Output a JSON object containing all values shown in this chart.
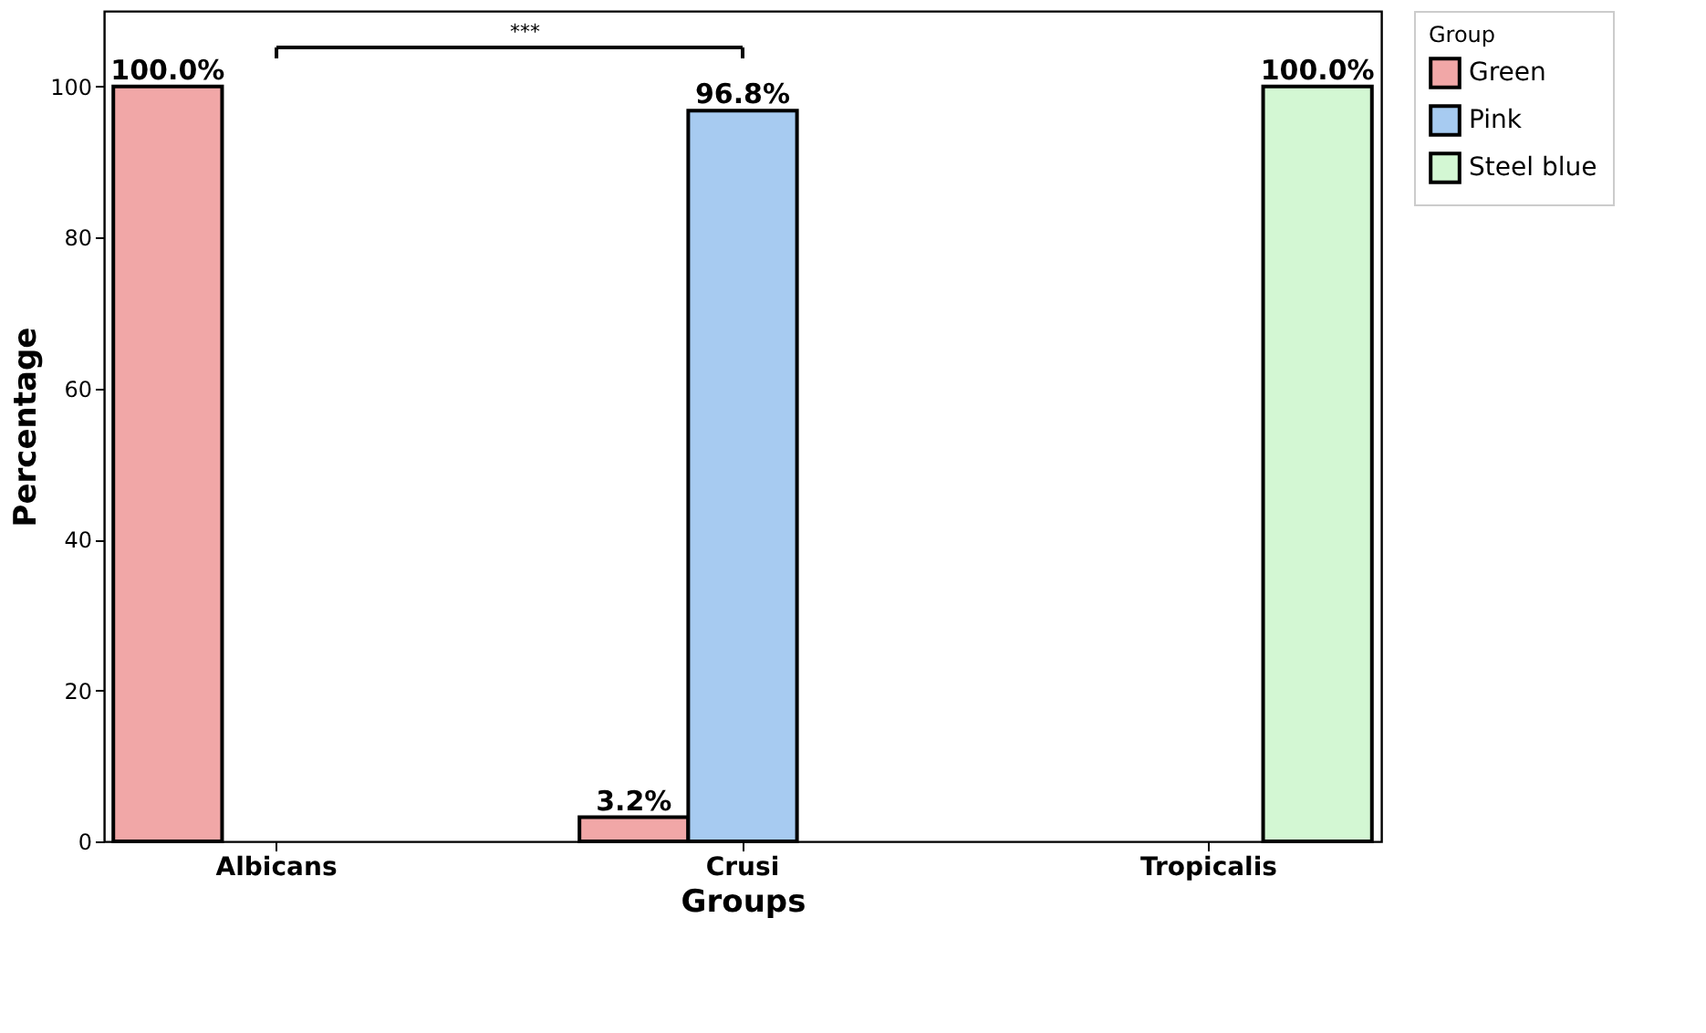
{
  "chart_data": {
    "type": "bar",
    "categories": [
      "Albicans",
      "Crusi",
      "Tropicalis"
    ],
    "series": [
      {
        "name": "Green",
        "color": "#f1a7a7",
        "values": [
          100.0,
          3.2,
          null
        ],
        "value_labels": [
          "100.0%",
          "3.2%",
          null
        ]
      },
      {
        "name": "Pink",
        "color": "#a7cbf1",
        "values": [
          null,
          96.8,
          null
        ],
        "value_labels": [
          null,
          "96.8%",
          null
        ]
      },
      {
        "name": "Steel blue",
        "color": "#d3f7d3",
        "values": [
          null,
          null,
          100.0
        ],
        "value_labels": [
          null,
          null,
          "100.0%"
        ]
      }
    ],
    "xlabel": "Groups",
    "ylabel": "Percentage",
    "legend_title": "Group",
    "legend": "right",
    "ylim": [
      0,
      110
    ],
    "yticks": [
      0,
      20,
      40,
      60,
      80,
      100
    ],
    "grid": false,
    "annotations": [
      "***"
    ]
  }
}
